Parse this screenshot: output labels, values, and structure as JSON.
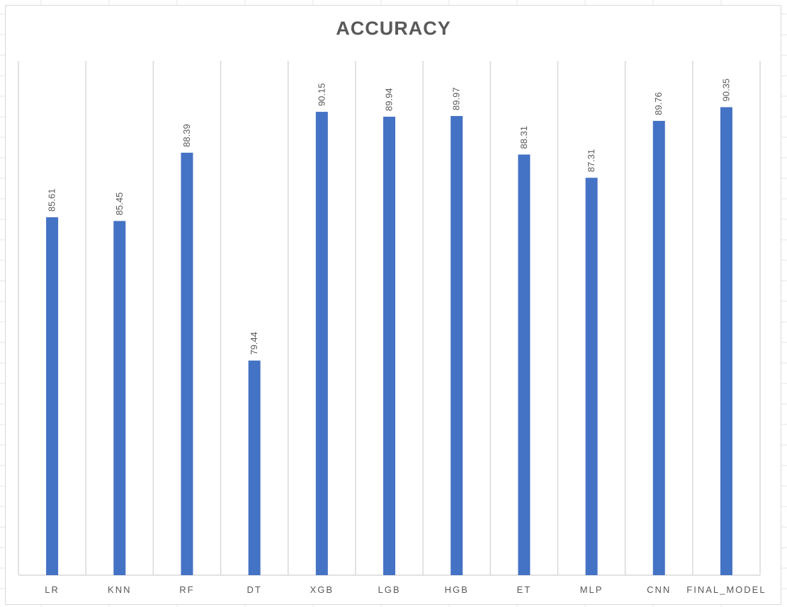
{
  "chart_data": {
    "type": "bar",
    "title": "ACCURACY",
    "categories": [
      "LR",
      "KNN",
      "RF",
      "DT",
      "XGB",
      "LGB",
      "HGB",
      "ET",
      "MLP",
      "CNN",
      "FINAL_MODEL"
    ],
    "series": [
      {
        "values": [
          85.61,
          85.45,
          88.39,
          79.44,
          90.15,
          89.94,
          89.97,
          88.31,
          87.31,
          89.76,
          90.35
        ]
      }
    ],
    "xlabel": "",
    "ylabel": "",
    "ylim": [
      70.2,
      90.7
    ],
    "grid": "vertical category dividers",
    "legend": "none",
    "bar_color": "#4472c4",
    "divider_color": "#d9d9d9",
    "text_color": "#595959"
  }
}
